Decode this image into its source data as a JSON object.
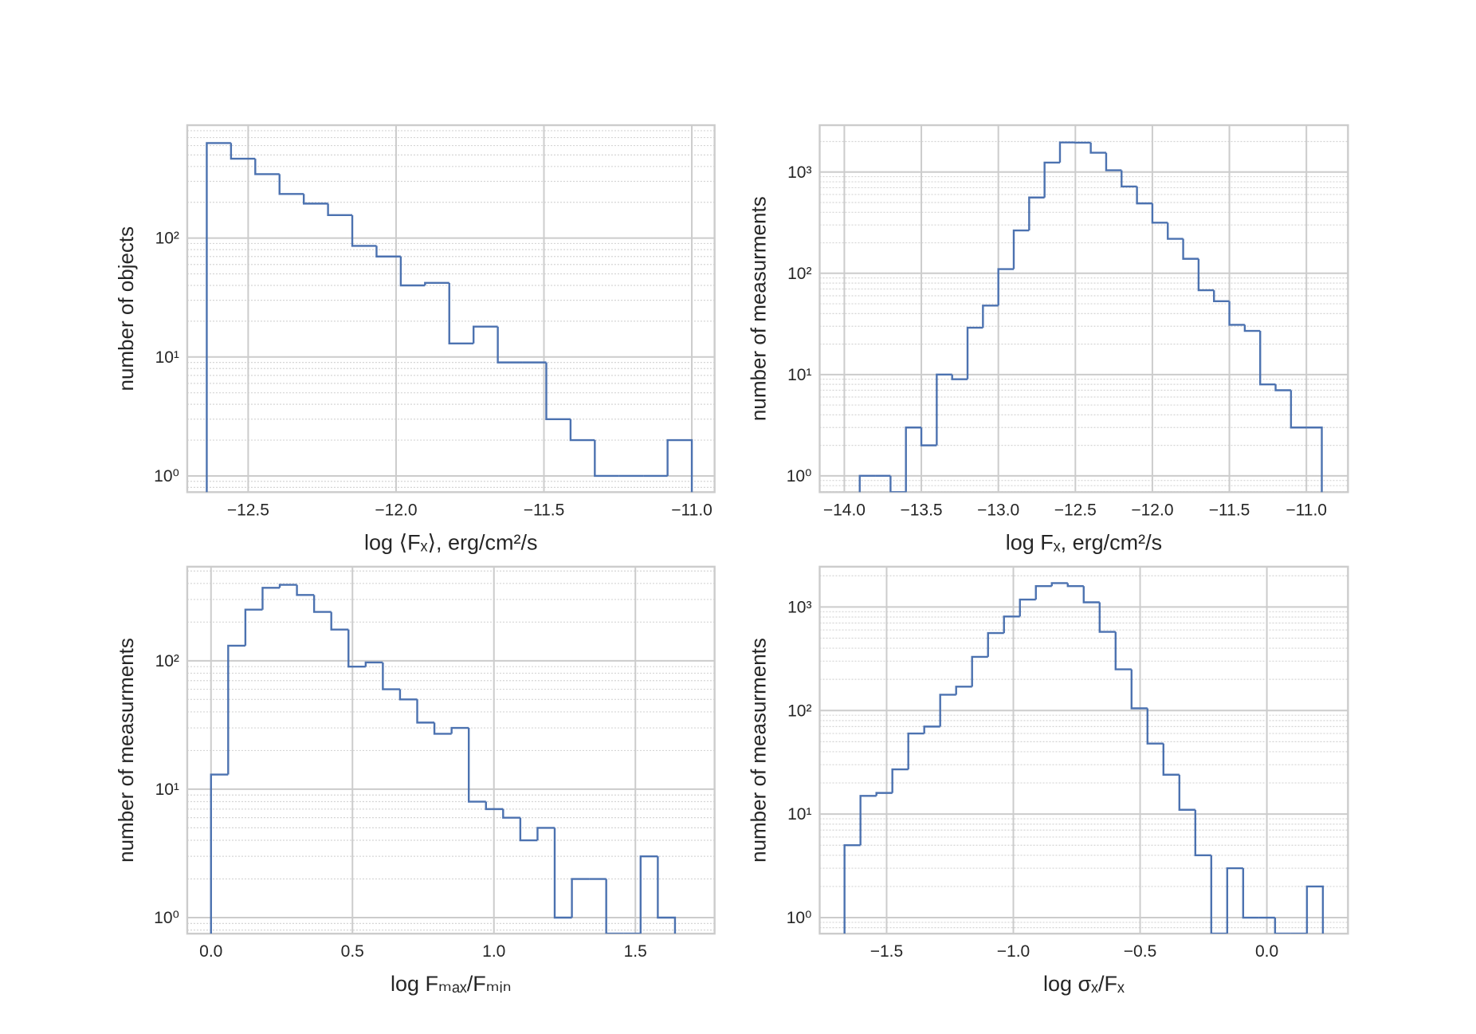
{
  "chart_data": [
    {
      "type": "histogram",
      "xlabel": "log ⟨Fₓ⟩,  erg/cm²/s",
      "ylabel": "number of objects",
      "color": "#4c72b0",
      "log_y": true,
      "grid": true,
      "bins": [
        -12.64,
        -12.558,
        -12.476,
        -12.394,
        -12.312,
        -12.23,
        -12.148,
        -12.066,
        -11.984,
        -11.902,
        -11.82,
        -11.738,
        -11.656,
        -11.574,
        -11.492,
        -11.41,
        -11.328,
        -11.246,
        -11.164,
        -11.082,
        -11.0
      ],
      "values": [
        630,
        465,
        345,
        235,
        195,
        156,
        86,
        70,
        40,
        42,
        13,
        18,
        9,
        9,
        3,
        2,
        1,
        1,
        1,
        2
      ],
      "xlim": [
        -12.706,
        -10.923
      ],
      "ylim": [
        0.73,
        890
      ],
      "xticks": [
        {
          "value": -12.5,
          "label": "−12.5"
        },
        {
          "value": -12.0,
          "label": "−12.0"
        },
        {
          "value": -11.5,
          "label": "−11.5"
        },
        {
          "value": -11.0,
          "label": "−11.0"
        }
      ],
      "yticks": [
        {
          "value": 1,
          "label": "10⁰"
        },
        {
          "value": 10,
          "label": "10¹"
        },
        {
          "value": 100,
          "label": "10²"
        }
      ]
    },
    {
      "type": "histogram",
      "xlabel": "log Fₓ,  erg/cm²/s",
      "ylabel": "number of measurments",
      "color": "#4c72b0",
      "log_y": true,
      "grid": true,
      "bins": [
        -13.9,
        -13.8,
        -13.7,
        -13.6,
        -13.5,
        -13.4,
        -13.3,
        -13.2,
        -13.1,
        -13.0,
        -12.9,
        -12.8,
        -12.7,
        -12.6,
        -12.5,
        -12.4,
        -12.3,
        -12.2,
        -12.1,
        -12.0,
        -11.9,
        -11.8,
        -11.7,
        -11.6,
        -11.5,
        -11.4,
        -11.3,
        -11.2,
        -11.1,
        -11.0,
        -10.9
      ],
      "values": [
        1,
        1,
        0,
        3,
        2,
        10,
        9,
        29,
        48,
        110,
        265,
        560,
        1240,
        1960,
        1950,
        1550,
        1040,
        720,
        490,
        316,
        219,
        139,
        68,
        53,
        31,
        27,
        8,
        7,
        3,
        3
      ],
      "xlim": [
        -14.16,
        -10.73
      ],
      "ylim": [
        0.69,
        2900
      ],
      "xticks": [
        {
          "value": -14.0,
          "label": "−14.0"
        },
        {
          "value": -13.5,
          "label": "−13.5"
        },
        {
          "value": -13.0,
          "label": "−13.0"
        },
        {
          "value": -12.5,
          "label": "−12.5"
        },
        {
          "value": -12.0,
          "label": "−12.0"
        },
        {
          "value": -11.5,
          "label": "−11.5"
        },
        {
          "value": -11.0,
          "label": "−11.0"
        }
      ],
      "yticks": [
        {
          "value": 1,
          "label": "10⁰"
        },
        {
          "value": 10,
          "label": "10¹"
        },
        {
          "value": 100,
          "label": "10²"
        },
        {
          "value": 1000,
          "label": "10³"
        }
      ]
    },
    {
      "type": "histogram",
      "xlabel": "log Fₘₐₓ/Fₘᵢₙ",
      "ylabel": "number of measurments",
      "color": "#4c72b0",
      "log_y": true,
      "grid": true,
      "bins": [
        0,
        0.0607,
        0.1215,
        0.1822,
        0.243,
        0.3037,
        0.3644,
        0.4252,
        0.4859,
        0.5467,
        0.6074,
        0.6681,
        0.7289,
        0.7896,
        0.8504,
        0.9111,
        0.9719,
        1.0326,
        1.0933,
        1.1541,
        1.2148,
        1.2756,
        1.3363,
        1.397,
        1.4578,
        1.5185,
        1.5793,
        1.64
      ],
      "values": [
        13,
        131,
        250,
        370,
        390,
        325,
        240,
        175,
        90,
        97,
        60,
        50,
        33,
        27,
        30,
        8,
        7,
        6,
        4,
        5,
        1,
        2,
        2,
        0,
        0,
        3,
        1
      ],
      "xlim": [
        -0.084,
        1.78
      ],
      "ylim": [
        0.75,
        540
      ],
      "xticks": [
        {
          "value": 0,
          "label": "0.0"
        },
        0.5,
        {
          "value": 1,
          "label": "1.0"
        },
        1.5
      ],
      "yticks": [
        {
          "value": 1,
          "label": "10⁰"
        },
        {
          "value": 10,
          "label": "10¹"
        },
        {
          "value": 100,
          "label": "10²"
        }
      ]
    },
    {
      "type": "histogram",
      "xlabel": "log σₓ/Fₓ",
      "ylabel": "number of measurments",
      "color": "#4c72b0",
      "log_y": true,
      "grid": true,
      "bins": [
        -1.666,
        -1.6031,
        -1.5402,
        -1.4773,
        -1.4144,
        -1.3515,
        -1.2886,
        -1.2257,
        -1.1628,
        -1.0999,
        -1.037,
        -0.9741,
        -0.9112,
        -0.8483,
        -0.7854,
        -0.7225,
        -0.6596,
        -0.5967,
        -0.5338,
        -0.4709,
        -0.408,
        -0.3451,
        -0.2822,
        -0.2193,
        -0.1564,
        -0.0935,
        -0.0306,
        0.0323,
        0.0952,
        0.1581,
        0.221
      ],
      "values": [
        5,
        15,
        16,
        27,
        60,
        70,
        142,
        170,
        330,
        560,
        810,
        1180,
        1590,
        1700,
        1590,
        1110,
        575,
        250,
        105,
        48,
        24,
        11,
        4,
        0,
        3,
        1,
        1,
        0,
        0,
        2
      ],
      "xlim": [
        -1.764,
        0.32
      ],
      "ylim": [
        0.7,
        2450
      ],
      "xticks": [
        {
          "value": -1.5,
          "label": "−1.5"
        },
        {
          "value": -1.0,
          "label": "−1.0"
        },
        {
          "value": -0.5,
          "label": "−0.5"
        },
        {
          "value": 0,
          "label": "0.0"
        }
      ],
      "yticks": [
        {
          "value": 1,
          "label": "10⁰"
        },
        {
          "value": 10,
          "label": "10¹"
        },
        {
          "value": 100,
          "label": "10²"
        },
        {
          "value": 1000,
          "label": "10³"
        }
      ]
    }
  ]
}
